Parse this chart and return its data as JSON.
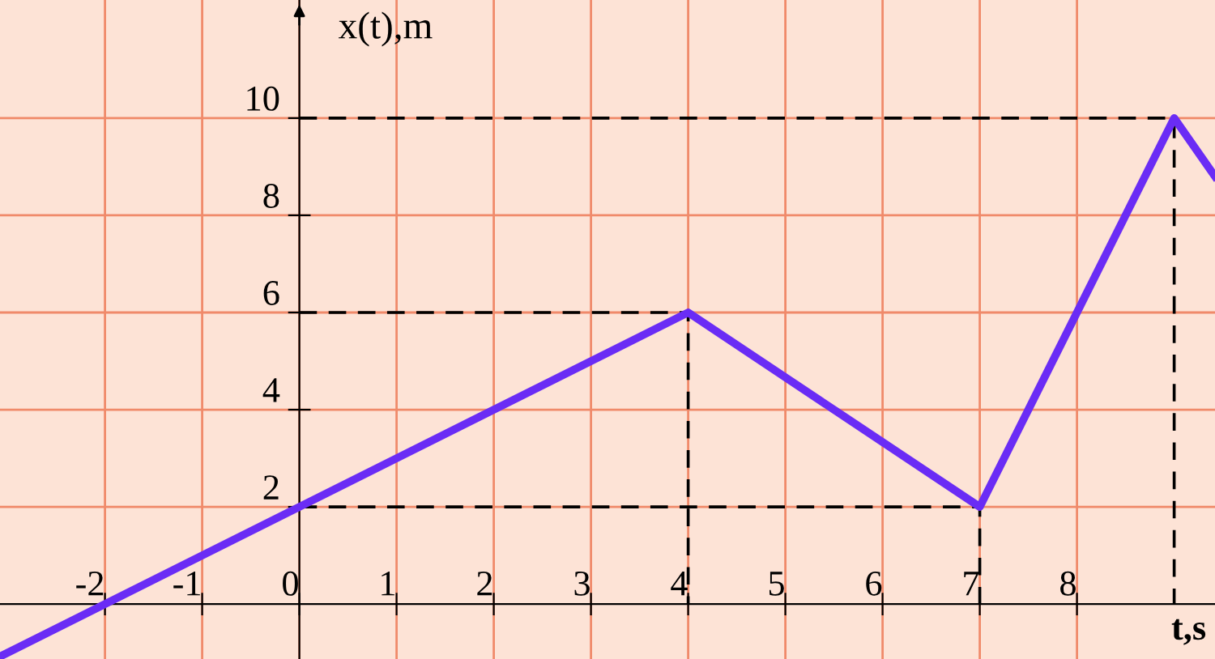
{
  "chart_data": {
    "type": "line",
    "xlabel": "t,s",
    "ylabel": "x(t),m",
    "x": [
      -3.08,
      4,
      7,
      9,
      9.42
    ],
    "series": [
      {
        "color": "#6a2cf5",
        "values": [
          -1.08,
          6,
          2,
          10,
          8.8
        ]
      },
      {
        "color": "#000000",
        "line_style": "dashed",
        "x": [
          0,
          9,
          9
        ],
        "values": [
          10,
          10,
          0
        ]
      },
      {
        "color": "#000000",
        "line_style": "dashed",
        "x": [
          0,
          4,
          4
        ],
        "values": [
          6,
          6,
          0
        ]
      },
      {
        "color": "#000000",
        "line_style": "dashed",
        "x": [
          0,
          7,
          7
        ],
        "values": [
          2,
          2,
          0
        ]
      }
    ],
    "xlim": [
      -3.08,
      9.42
    ],
    "ylim": [
      -1.13,
      12.43
    ],
    "xticks": [
      -2,
      -1,
      0,
      1,
      2,
      3,
      4,
      5,
      6,
      7,
      8
    ],
    "yticks": [
      2,
      4,
      6,
      8,
      10
    ],
    "grid": true,
    "legend": false,
    "marker": "none"
  }
}
